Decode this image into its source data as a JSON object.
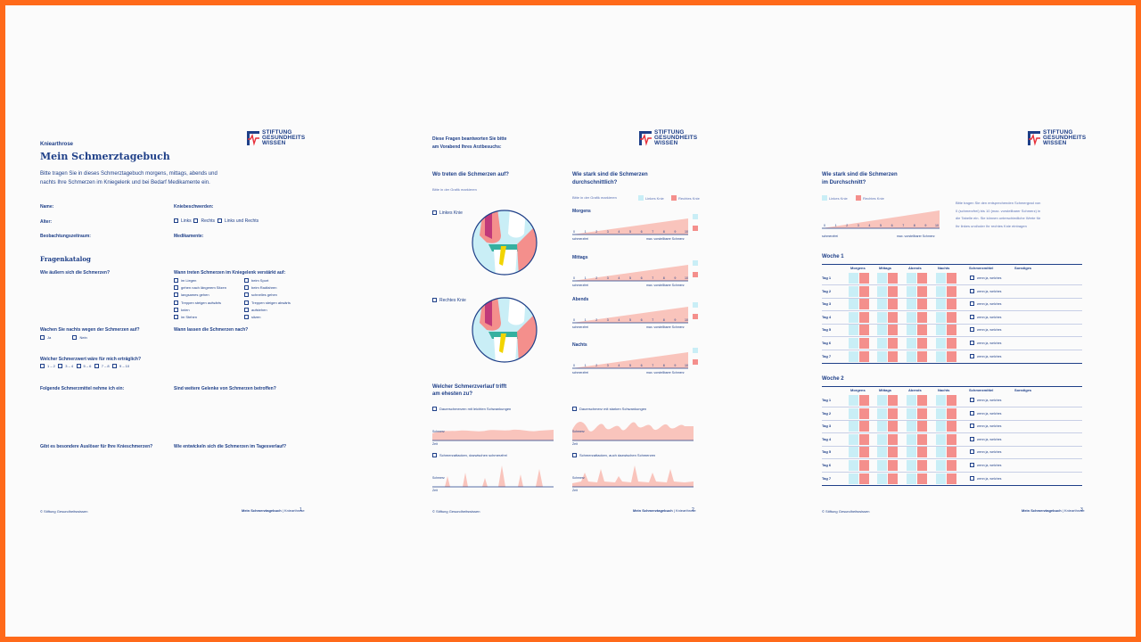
{
  "colors": {
    "frame": "#ff6a1a",
    "ink": "#1e3f88",
    "left_knee": "#c9eef6",
    "right_knee": "#f48f8c",
    "pain_fill": "#f9c4bc"
  },
  "logo": {
    "line1": "STIFTUNG",
    "line2": "GESUNDHEITS",
    "line3": "WISSEN",
    "icon": "heartbeat-cross-icon"
  },
  "page1": {
    "kicker": "Kniearthrose",
    "title": "Mein Schmerztagebuch",
    "intro_line1": "Bitte tragen Sie in dieses Schmerztagebuch morgens, mittags, abends und",
    "intro_line2": "nachts Ihre Schmerzen im Kniegelenk und bei Bedarf Medikamente ein.",
    "name": "Name:",
    "age": "Alter:",
    "period": "Beobachtungszeitraum:",
    "knee_complaints": "Kniebeschwerden:",
    "knee_left": "Links",
    "knee_right": "Rechts",
    "knee_both": "Links und Rechts",
    "medication": "Medikamente:",
    "catalog": "Fragenkatalog",
    "q_express": "Wie äußern sich die Schmerzen?",
    "q_when_worse": "Wann treten Schmerzen im Kniegelenk verstärkt auf:",
    "worse_col1": [
      "im Liegen",
      "gehen nach längerem Sitzen",
      "langsames gehen",
      "Treppen steigen aufwärts",
      "knien",
      "im Stehen"
    ],
    "worse_col2": [
      "beim Sport",
      "beim Radfahren",
      "schnelles gehen",
      "Treppen steigen abwärts",
      "aufstehen",
      "sitzen"
    ],
    "q_night": "Wachen Sie nachts wegen der Schmerzen auf?",
    "yes": "Ja",
    "no": "Nein",
    "q_when_less": "Wann lassen die Schmerzen nach?",
    "q_tolerable": "Welcher Schmerzwert wäre für mich erträglich?",
    "tolerable_opts": [
      "1 – 2",
      "3 – 4",
      "5 – 6",
      "7 – 8",
      "9 – 10"
    ],
    "q_meds": "Folgende Schmerzmittel nehme ich ein:",
    "q_other_joints": "Sind weitere Gelenke von Schmerzen betroffen?",
    "q_triggers": "Gibt es besondere Auslöser für Ihre Knieschmerzen?",
    "q_course": "Wie entwickeln sich die Schmerzen im Tagesverlauf?",
    "footer_left": "© Stiftung Gesundheitswissen",
    "footer_title": "Mein Schmerztagebuch",
    "footer_sub": "Kniearthrose",
    "page_no": "1"
  },
  "page2": {
    "intro_line1": "Diese Fragen beantworten Sie bitte",
    "intro_line2": "am Vorabend Ihres Arztbesuchs:",
    "where_title": "Wo treten die Schmerzen auf?",
    "where_hint": "Bitte in der Grafik markieren",
    "left_knee": "Linkes Knie",
    "right_knee": "Rechtes Knie",
    "strength_title1": "Wie stark sind die Schmerzen",
    "strength_title2": "durchschnittlich?",
    "strength_hint": "Bitte in der Grafik markieren",
    "legend_left": "Linkes Knie",
    "legend_right": "Rechtes Knie",
    "times": [
      "Morgens",
      "Mittags",
      "Abends",
      "Nachts"
    ],
    "scale_numbers": [
      "0",
      "1",
      "2",
      "3",
      "4",
      "5",
      "6",
      "7",
      "8",
      "9",
      "10"
    ],
    "scale_min": "schmerzfrei",
    "scale_max": "max. vorstellbarer Schmerz",
    "course_title1": "Welcher Schmerzverlauf trifft",
    "course_title2": "am ehesten zu?",
    "courses": [
      "Dauerschmerzen mit leichten Schwankungen",
      "Dauerschmerz mit starken Schwankungen",
      "Schmerzattacken, dazwischen schmerzfrei",
      "Schmerzattacken, auch dazwischen Schmerzen"
    ],
    "axis_pain": "Schmerz",
    "axis_time": "Zeit",
    "footer_left": "© Stiftung Gesundheitswissen",
    "footer_title": "Mein Schmerztagebuch",
    "footer_sub": "Kniearthrose",
    "page_no": "2"
  },
  "page3": {
    "title1": "Wie stark sind die Schmerzen",
    "title2": "im Durchschnitt?",
    "legend_left": "Linkes Knie",
    "legend_right": "Rechtes Knie",
    "hint_lines": [
      "Bitte tragen Sie den entsprechenden Schmergrad von",
      "0 (schmerzfrei) bis 10 (max. vorstellbarer Schmerz) in",
      "die Tabelle ein. Sie können unterschiedliche Werte für",
      "Ihr linkes und/oder Ihr rechtes Knie eintragen"
    ],
    "scale_numbers": [
      "0",
      "1",
      "2",
      "3",
      "4",
      "5",
      "6",
      "7",
      "8",
      "9",
      "10"
    ],
    "scale_min": "schmerzfrei",
    "scale_max": "max. vorstellbarer Schmerz",
    "week1": "Woche 1",
    "week2": "Woche 2",
    "cols": [
      "Morgens",
      "Mittags",
      "Abends",
      "Nachts",
      "Schmerzmittel",
      "Sonstiges"
    ],
    "days": [
      "Tag 1",
      "Tag 2",
      "Tag 3",
      "Tag 4",
      "Tag 5",
      "Tag 6",
      "Tag 7"
    ],
    "med_hint": "wenn ja, welches",
    "footer_left": "© Stiftung Gesundheitswissen",
    "footer_title": "Mein Schmerztagebuch",
    "footer_sub": "Kniearthrose",
    "page_no": "3"
  }
}
